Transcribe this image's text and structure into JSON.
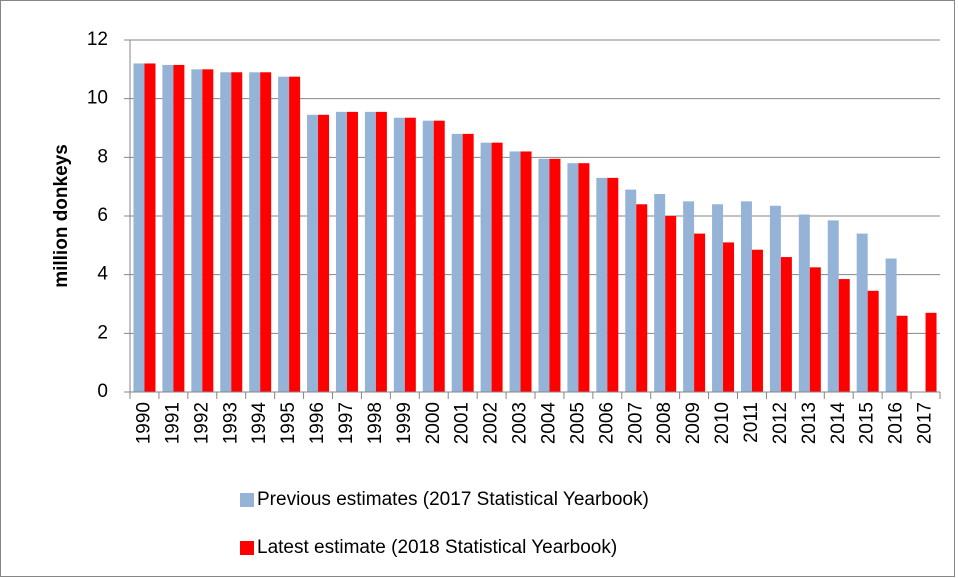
{
  "chart_data": {
    "type": "bar",
    "y_label": "million donkeys",
    "categories": [
      "1990",
      "1991",
      "1992",
      "1993",
      "1994",
      "1995",
      "1996",
      "1997",
      "1998",
      "1999",
      "2000",
      "2001",
      "2002",
      "2003",
      "2004",
      "2005",
      "2006",
      "2007",
      "2008",
      "2009",
      "2010",
      "2011",
      "2012",
      "2013",
      "2014",
      "2015",
      "2016",
      "2017"
    ],
    "series": [
      {
        "name": "Previous estimates (2017 Statistical Yearbook)",
        "color": "#95b3d7",
        "values": [
          11.2,
          11.15,
          11.0,
          10.9,
          10.9,
          10.75,
          9.45,
          9.55,
          9.55,
          9.35,
          9.25,
          8.8,
          8.5,
          8.2,
          7.95,
          7.8,
          7.3,
          6.9,
          6.75,
          6.5,
          6.4,
          6.5,
          6.35,
          6.05,
          5.85,
          5.4,
          4.55,
          null
        ]
      },
      {
        "name": "Latest estimate (2018 Statistical Yearbook)",
        "color": "#ff0000",
        "values": [
          11.2,
          11.15,
          11.0,
          10.9,
          10.9,
          10.75,
          9.45,
          9.55,
          9.55,
          9.35,
          9.25,
          8.8,
          8.5,
          8.2,
          7.95,
          7.8,
          7.3,
          6.4,
          6.0,
          5.4,
          5.1,
          4.85,
          4.6,
          4.25,
          3.85,
          3.45,
          2.6,
          2.7
        ]
      }
    ],
    "ylim": [
      0,
      12
    ],
    "yticks": [
      0,
      2,
      4,
      6,
      8,
      10,
      12
    ],
    "grid": true,
    "legend": "bottom"
  }
}
